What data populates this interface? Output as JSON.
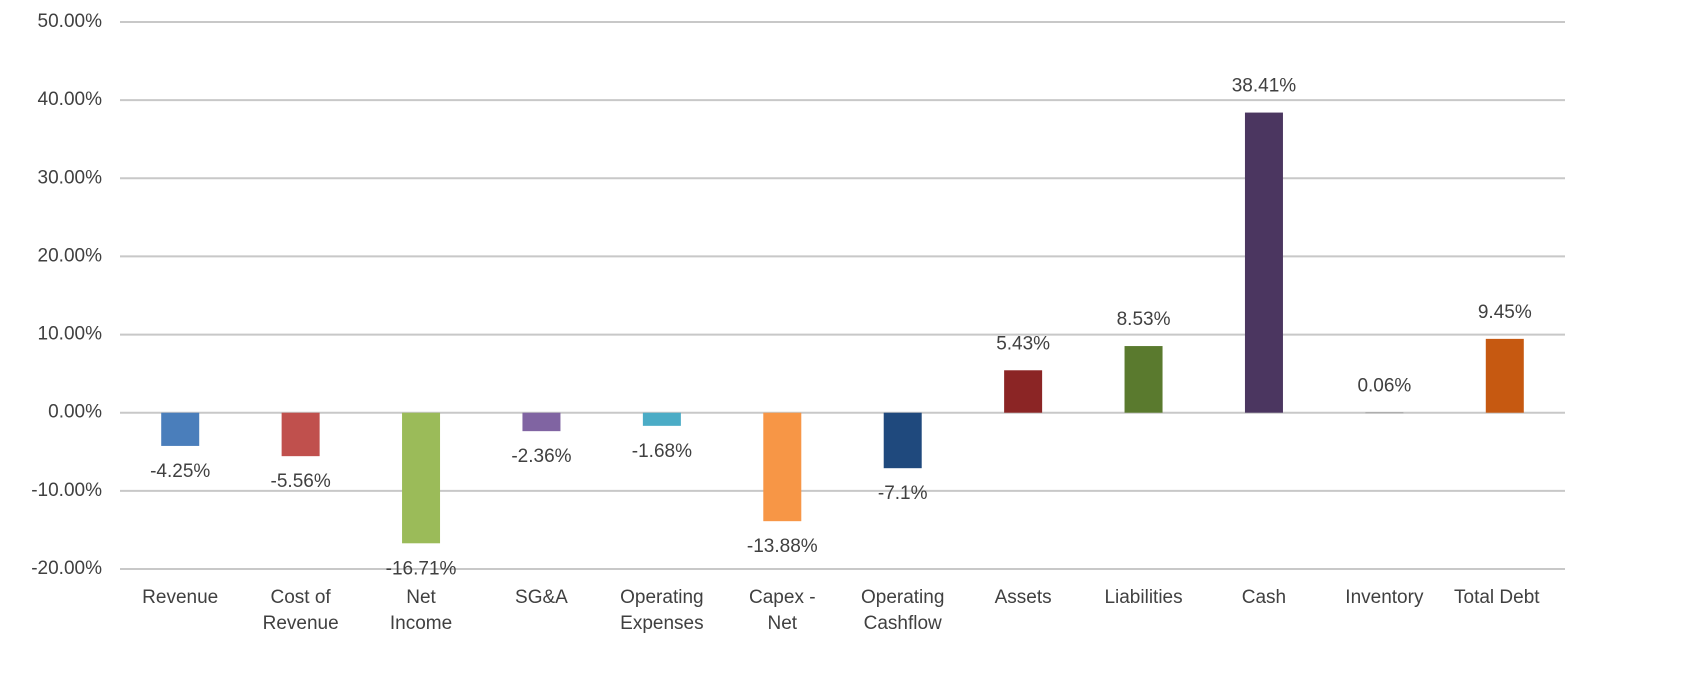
{
  "chart_data": {
    "type": "bar",
    "categories": [
      "Revenue",
      "Cost of Revenue",
      "Net Income",
      "SG&A",
      "Operating Expenses",
      "Capex - Net",
      "Operating Cashflow",
      "Assets",
      "Liabilities",
      "Cash",
      "Inventory",
      "Total Debt"
    ],
    "values": [
      -4.25,
      -5.56,
      -16.71,
      -2.36,
      -1.68,
      -13.88,
      -7.1,
      5.43,
      8.53,
      38.41,
      0.06,
      9.45
    ],
    "value_labels": [
      "-4.25%",
      "-5.56%",
      "-16.71%",
      "-2.36%",
      "-1.68%",
      "-13.88%",
      "-7.1%",
      "5.43%",
      "8.53%",
      "38.41%",
      "0.06%",
      "9.45%"
    ],
    "colors": [
      "#4a7ebb",
      "#c0504d",
      "#9bbb59",
      "#8064a2",
      "#4bacc6",
      "#f79646",
      "#1f497d",
      "#8b2525",
      "#5a7a2e",
      "#4b3660",
      "#a6a6a6",
      "#c65911"
    ],
    "ylim": [
      -20,
      50
    ],
    "yticks": [
      {
        "value": -20,
        "label": "-20.00%"
      },
      {
        "value": -10,
        "label": "-10.00%"
      },
      {
        "value": 0,
        "label": "0.00%"
      },
      {
        "value": 10,
        "label": "10.00%"
      },
      {
        "value": 20,
        "label": "20.00%"
      },
      {
        "value": 30,
        "label": "30.00%"
      },
      {
        "value": 40,
        "label": "40.00%"
      },
      {
        "value": 50,
        "label": "50.00%"
      }
    ],
    "grid": true
  }
}
